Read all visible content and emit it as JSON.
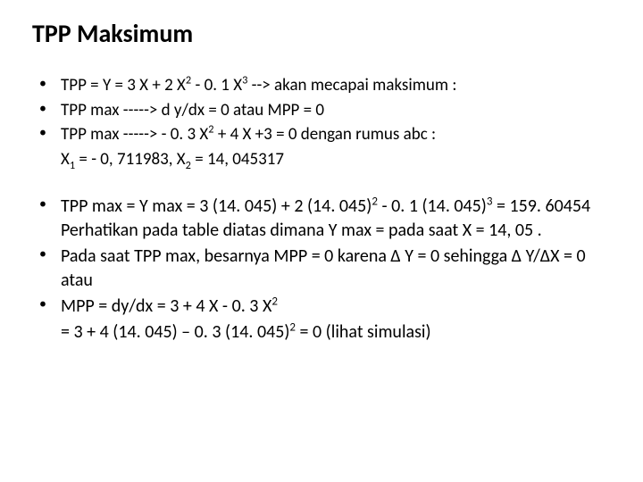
{
  "title": "TPP  Maksimum",
  "block1": {
    "l1a": " TPP  =  Y  = 3 X + 2 X",
    "l1b": " - 0. 1 X",
    "l1c": " --> akan mecapai maksimum   :",
    "l2": " TPP max  -----> d y/dx  =  0   atau  MPP    =  0",
    "l3a": " TPP max  ----->   -   0. 3 X",
    "l3b": " + 4 X +3 =  0  dengan rumus  abc :",
    "l4a": "  X",
    "l4b": "  =  - 0, 711983,         X",
    "l4c": "  =  14, 045317"
  },
  "block2": {
    "l1a": "TPP max =  Y max = 3 (14. 045) + 2 (14. 045)",
    "l1b": " - 0. 1 (14. 045)",
    "l1c": "  = 159. 60454   Perhatikan pada table diatas dimana Y max   = pada saat   X = 14, 05 .",
    "l2": "Pada saat TPP max,  besarnya   MPP = 0   karena ∆ Y  = 0    sehingga ∆ Y/∆X  =  0   atau",
    "l3a": "MPP = dy/dx   =   3 + 4 X - 0. 3 X",
    "l4a": "=   3 + 4 (14. 045) – 0. 3 (14. 045)",
    "l4b": " =  0   (lihat simulasi)"
  }
}
